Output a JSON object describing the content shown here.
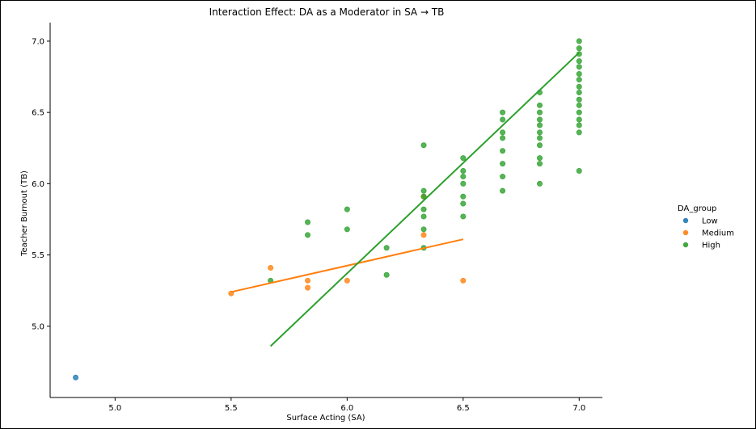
{
  "chart_data": {
    "type": "scatter",
    "title": "Interaction Effect: DA as a Moderator in SA → TB",
    "xlabel": "Surface Acting (SA)",
    "ylabel": "Teacher Burnout (TB)",
    "xlim": [
      4.72,
      7.1
    ],
    "ylim": [
      4.5,
      7.13
    ],
    "xticks": [
      "5.0",
      "5.5",
      "6.0",
      "6.5",
      "7.0"
    ],
    "yticks": [
      "5.0",
      "5.5",
      "6.0",
      "6.5",
      "7.0"
    ],
    "grid": false,
    "legend": {
      "title": "DA_group",
      "placement": "right",
      "entries": [
        "Low",
        "Medium",
        "High"
      ]
    },
    "series": [
      {
        "name": "Low",
        "color": "#1f77b4",
        "points": [
          [
            4.83,
            4.64
          ]
        ]
      },
      {
        "name": "Medium",
        "color": "#ff7f0e",
        "points": [
          [
            5.5,
            5.23
          ],
          [
            5.67,
            5.41
          ],
          [
            5.83,
            5.32
          ],
          [
            5.83,
            5.27
          ],
          [
            6.0,
            5.32
          ],
          [
            6.33,
            5.91
          ],
          [
            6.33,
            5.64
          ],
          [
            6.5,
            5.32
          ]
        ],
        "fit_line": [
          [
            5.5,
            5.24
          ],
          [
            6.5,
            5.61
          ]
        ]
      },
      {
        "name": "High",
        "color": "#2ca02c",
        "points": [
          [
            5.67,
            5.32
          ],
          [
            5.83,
            5.73
          ],
          [
            5.83,
            5.64
          ],
          [
            6.0,
            5.82
          ],
          [
            6.0,
            5.68
          ],
          [
            6.17,
            5.55
          ],
          [
            6.17,
            5.36
          ],
          [
            6.33,
            6.27
          ],
          [
            6.33,
            5.95
          ],
          [
            6.33,
            5.91
          ],
          [
            6.33,
            5.82
          ],
          [
            6.33,
            5.77
          ],
          [
            6.33,
            5.68
          ],
          [
            6.33,
            5.55
          ],
          [
            6.5,
            6.18
          ],
          [
            6.5,
            6.09
          ],
          [
            6.5,
            6.05
          ],
          [
            6.5,
            6.0
          ],
          [
            6.5,
            5.91
          ],
          [
            6.5,
            5.86
          ],
          [
            6.5,
            5.77
          ],
          [
            6.67,
            6.5
          ],
          [
            6.67,
            6.45
          ],
          [
            6.67,
            6.36
          ],
          [
            6.67,
            6.32
          ],
          [
            6.67,
            6.23
          ],
          [
            6.67,
            6.14
          ],
          [
            6.67,
            6.05
          ],
          [
            6.67,
            5.95
          ],
          [
            6.83,
            6.64
          ],
          [
            6.83,
            6.55
          ],
          [
            6.83,
            6.5
          ],
          [
            6.83,
            6.45
          ],
          [
            6.83,
            6.41
          ],
          [
            6.83,
            6.36
          ],
          [
            6.83,
            6.32
          ],
          [
            6.83,
            6.27
          ],
          [
            6.83,
            6.18
          ],
          [
            6.83,
            6.14
          ],
          [
            6.83,
            6.0
          ],
          [
            7.0,
            7.0
          ],
          [
            7.0,
            6.95
          ],
          [
            7.0,
            6.91
          ],
          [
            7.0,
            6.86
          ],
          [
            7.0,
            6.82
          ],
          [
            7.0,
            6.77
          ],
          [
            7.0,
            6.73
          ],
          [
            7.0,
            6.68
          ],
          [
            7.0,
            6.64
          ],
          [
            7.0,
            6.59
          ],
          [
            7.0,
            6.55
          ],
          [
            7.0,
            6.5
          ],
          [
            7.0,
            6.45
          ],
          [
            7.0,
            6.41
          ],
          [
            7.0,
            6.36
          ],
          [
            7.0,
            6.09
          ]
        ],
        "fit_line": [
          [
            5.67,
            4.86
          ],
          [
            7.0,
            6.92
          ]
        ]
      }
    ]
  }
}
